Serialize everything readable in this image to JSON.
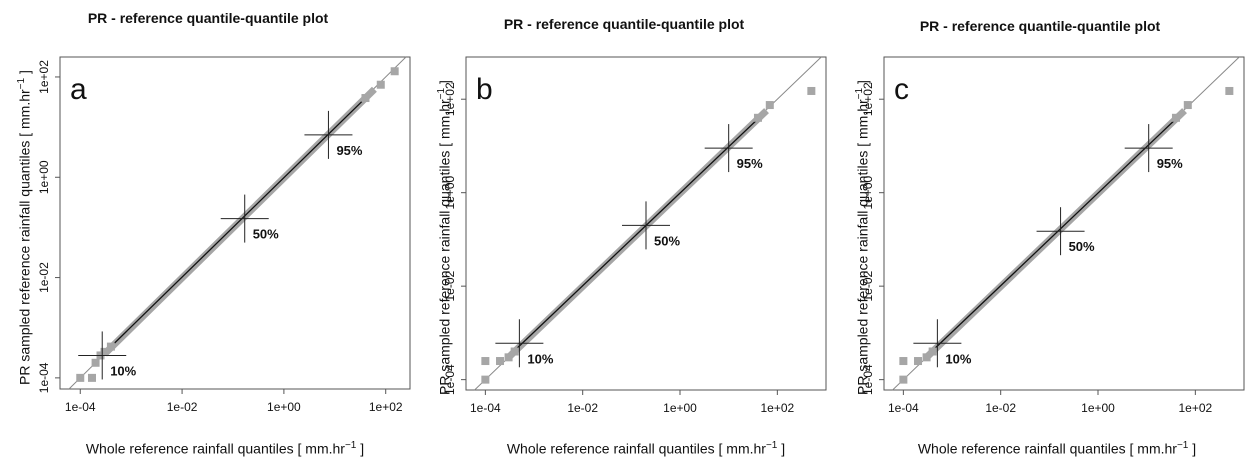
{
  "chart_data": [
    {
      "type": "scatter",
      "panel_label": "a",
      "title": "PR - reference quantile-quantile plot",
      "xlabel": "Whole reference rainfall quantiles [ mm.hr",
      "ylabel": "PR sampled reference rainfall quantiles [ mm.hr",
      "unit_exponent": "−1",
      "unit_close": " ]",
      "x_scale": "log",
      "y_scale": "log",
      "xlim": [
        4e-05,
        300
      ],
      "ylim": [
        6e-05,
        250
      ],
      "x_ticks": [
        "1e-04",
        "1e-02",
        "1e+00",
        "1e+02"
      ],
      "y_ticks": [
        "1e-04",
        "1e-02",
        "1e+00",
        "1e+02"
      ],
      "points": [
        [
          0.0001,
          0.0001
        ],
        [
          0.00017,
          0.0001
        ],
        [
          0.0002,
          0.0002
        ],
        [
          0.00025,
          0.00028
        ],
        [
          0.0003,
          0.00033
        ],
        [
          0.0004,
          0.00042
        ],
        [
          150,
          130
        ],
        [
          80,
          70
        ],
        [
          40,
          38
        ]
      ],
      "markers": [
        {
          "label": "10%",
          "x": 0.00027,
          "y": 0.00028
        },
        {
          "label": "50%",
          "x": 0.17,
          "y": 0.15
        },
        {
          "label": "95%",
          "x": 7.5,
          "y": 7.0
        }
      ]
    },
    {
      "type": "scatter",
      "panel_label": "b",
      "title": "PR - reference quantile-quantile plot",
      "xlabel": "Whole reference rainfall quantiles [ mm.hr",
      "ylabel": "PR sampled reference rainfall quantiles [ mm.hr",
      "unit_exponent": "−1",
      "unit_close": " ]",
      "x_scale": "log",
      "y_scale": "log",
      "xlim": [
        4e-05,
        1000
      ],
      "ylim": [
        6e-05,
        800
      ],
      "x_ticks": [
        "1e-04",
        "1e-02",
        "1e+00",
        "1e+02"
      ],
      "y_ticks": [
        "1e-04",
        "1e-02",
        "1e+00",
        "1e+02"
      ],
      "points": [
        [
          0.0001,
          0.0001
        ],
        [
          0.0001,
          0.00025
        ],
        [
          0.0002,
          0.00025
        ],
        [
          0.0003,
          0.0003
        ],
        [
          0.0004,
          0.0004
        ],
        [
          500,
          150
        ],
        [
          70,
          75
        ],
        [
          40,
          40
        ]
      ],
      "markers": [
        {
          "label": "10%",
          "x": 0.0005,
          "y": 0.0006
        },
        {
          "label": "50%",
          "x": 0.2,
          "y": 0.2
        },
        {
          "label": "95%",
          "x": 10,
          "y": 9
        }
      ]
    },
    {
      "type": "scatter",
      "panel_label": "c",
      "title": "PR - reference quantile-quantile plot",
      "xlabel": "Whole reference rainfall quantiles [ mm.hr",
      "ylabel": "PR sampled reference rainfall quantiles [ mm.hr",
      "unit_exponent": "−1",
      "unit_close": " ]",
      "x_scale": "log",
      "y_scale": "log",
      "xlim": [
        4e-05,
        1000
      ],
      "ylim": [
        6e-05,
        800
      ],
      "x_ticks": [
        "1e-04",
        "1e-02",
        "1e+00",
        "1e+02"
      ],
      "y_ticks": [
        "1e-04",
        "1e-02",
        "1e+00",
        "1e+02"
      ],
      "points": [
        [
          0.0001,
          0.0001
        ],
        [
          0.0001,
          0.00025
        ],
        [
          0.0002,
          0.00025
        ],
        [
          0.0003,
          0.0003
        ],
        [
          0.0004,
          0.0004
        ],
        [
          500,
          150
        ],
        [
          70,
          75
        ],
        [
          40,
          40
        ]
      ],
      "markers": [
        {
          "label": "10%",
          "x": 0.0005,
          "y": 0.0006
        },
        {
          "label": "50%",
          "x": 0.17,
          "y": 0.15
        },
        {
          "label": "95%",
          "x": 11,
          "y": 9
        }
      ]
    }
  ],
  "colors": {
    "points": "#a6a6a6",
    "line": "#111111",
    "reference_line": "#888888",
    "axis": "#555555"
  }
}
